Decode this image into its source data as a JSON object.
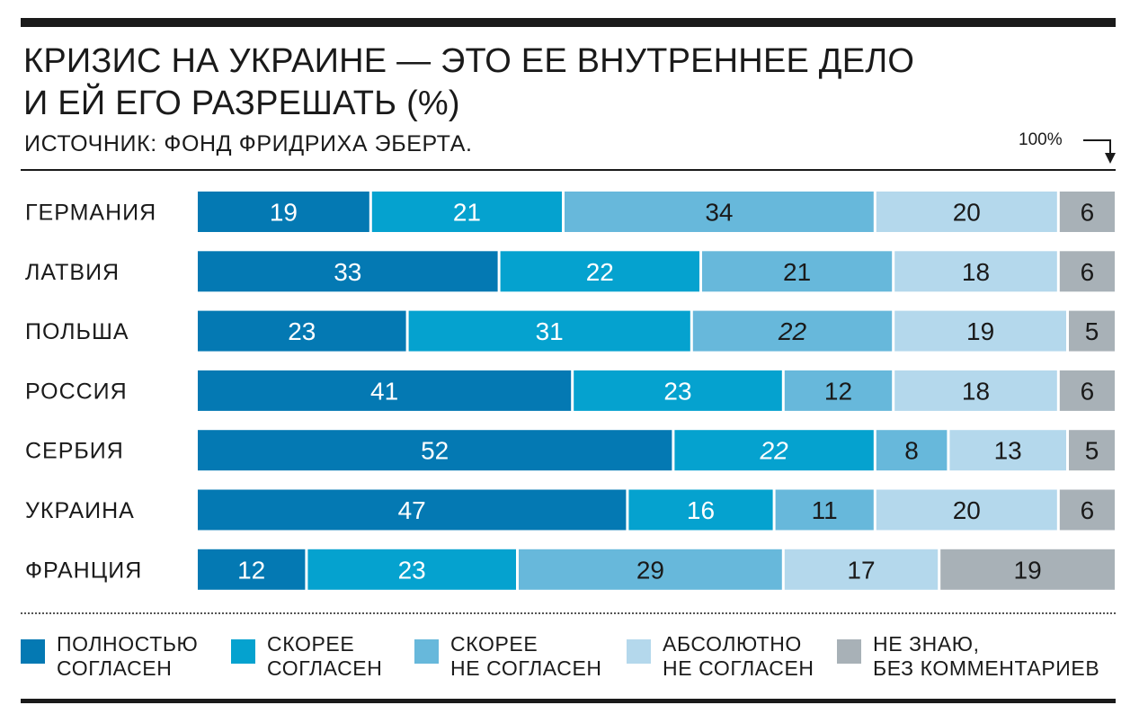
{
  "title_line1": "КРИЗИС НА УКРАИНЕ — ЭТО ЕЕ ВНУТРЕННЕЕ ДЕЛО",
  "title_line2": "И ЕЙ ЕГО РАЗРЕШАТЬ (%)",
  "source": "ИСТОЧНИК: ФОНД ФРИДРИХА ЭБЕРТА.",
  "total_marker": "100%",
  "colors": [
    "#0479b3",
    "#05a2cf",
    "#67b8db",
    "#b4d8ec",
    "#a8b1b7"
  ],
  "legend": [
    {
      "line1": "ПОЛНОСТЬЮ",
      "line2": "СОГЛАСЕН"
    },
    {
      "line1": "СКОРЕЕ",
      "line2": "СОГЛАСЕН"
    },
    {
      "line1": "СКОРЕЕ",
      "line2": "НЕ СОГЛАСЕН"
    },
    {
      "line1": "АБСОЛЮТНО",
      "line2": "НЕ СОГЛАСЕН"
    },
    {
      "line1": "НЕ ЗНАЮ,",
      "line2": "БЕЗ КОММЕНТАРИЕВ"
    }
  ],
  "chart_data": {
    "type": "bar",
    "orientation": "horizontal",
    "stacked": true,
    "xlim": [
      0,
      100
    ],
    "categories": [
      "ГЕРМАНИЯ",
      "ЛАТВИЯ",
      "ПОЛЬША",
      "РОССИЯ",
      "СЕРБИЯ",
      "УКРАИНА",
      "ФРАНЦИЯ"
    ],
    "series": [
      {
        "name": "ПОЛНОСТЬЮ СОГЛАСЕН",
        "values": [
          19,
          33,
          23,
          41,
          52,
          47,
          12
        ]
      },
      {
        "name": "СКОРЕЕ СОГЛАСЕН",
        "values": [
          21,
          22,
          31,
          23,
          22,
          16,
          23
        ]
      },
      {
        "name": "СКОРЕЕ НЕ СОГЛАСЕН",
        "values": [
          34,
          21,
          22,
          12,
          8,
          11,
          29
        ]
      },
      {
        "name": "АБСОЛЮТНО НЕ СОГЛАСЕН",
        "values": [
          20,
          18,
          19,
          18,
          13,
          20,
          17
        ]
      },
      {
        "name": "НЕ ЗНАЮ, БЕЗ КОММЕНТАРИЕВ",
        "values": [
          6,
          6,
          5,
          6,
          5,
          6,
          19
        ]
      }
    ],
    "italic_labels": [
      [
        2,
        2
      ],
      [
        4,
        1
      ]
    ],
    "legend_position": "bottom",
    "grid": false
  }
}
